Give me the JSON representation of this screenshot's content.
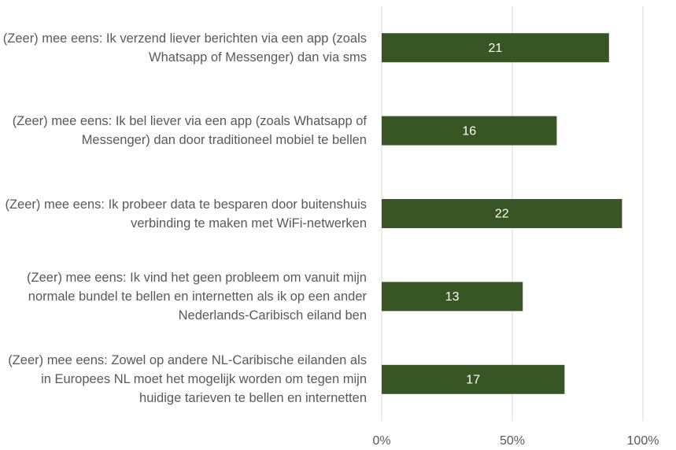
{
  "chart_data": {
    "type": "barh",
    "categories": [
      "(Zeer) mee eens: Ik verzend liever berichten via een app (zoals Whatsapp of Messenger) dan via sms",
      "(Zeer) mee eens: Ik bel liever via een app (zoals Whatsapp of Messenger) dan door traditioneel mobiel te bellen",
      "(Zeer) mee eens: Ik probeer data te besparen door buitenshuis verbinding te maken met WiFi-netwerken",
      "(Zeer) mee eens: Ik vind het geen probleem om vanuit mijn normale bundel te bellen en internetten als ik op een ander Nederlands-Caribisch eiland ben",
      "(Zeer) mee eens: Zowel op andere NL-Caribische eilanden als in Europees NL moet het mogelijk worden om tegen mijn huidige tarieven te bellen en internetten"
    ],
    "values": [
      87,
      67,
      92,
      54,
      70
    ],
    "counts": [
      21,
      16,
      22,
      13,
      17
    ],
    "color": "#375623",
    "xlim": [
      0,
      100
    ],
    "xticks": [
      {
        "value": 0,
        "label": "0%"
      },
      {
        "value": 50,
        "label": "50%"
      },
      {
        "value": 100,
        "label": "100%"
      }
    ],
    "grid": true
  }
}
